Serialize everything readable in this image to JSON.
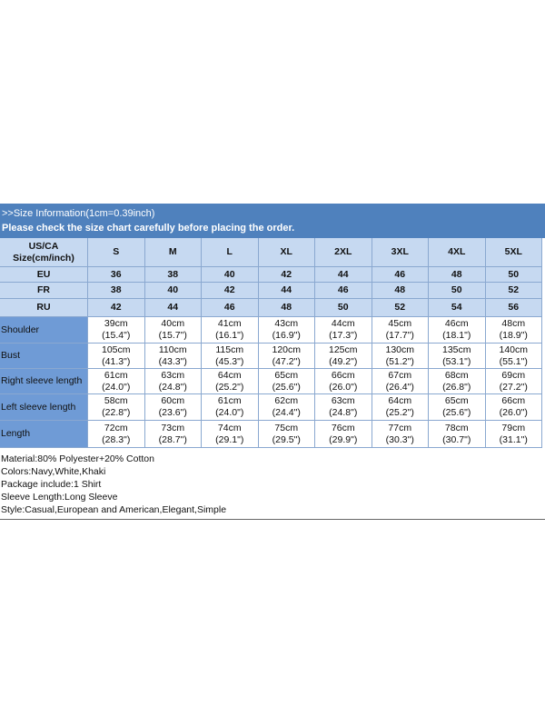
{
  "header": {
    "line1": ">>Size Information(1cm=0.39inch)",
    "line2": "Please check the size chart carefully before placing the order."
  },
  "table": {
    "size_head": [
      "US/CA",
      "Size(cm/inch)"
    ],
    "sizes": [
      "S",
      "M",
      "L",
      "XL",
      "2XL",
      "3XL",
      "4XL",
      "5XL"
    ],
    "conversions": [
      {
        "label": "EU",
        "values": [
          "36",
          "38",
          "40",
          "42",
          "44",
          "46",
          "48",
          "50"
        ]
      },
      {
        "label": "FR",
        "values": [
          "38",
          "40",
          "42",
          "44",
          "46",
          "48",
          "50",
          "52"
        ]
      },
      {
        "label": "RU",
        "values": [
          "42",
          "44",
          "46",
          "48",
          "50",
          "52",
          "54",
          "56"
        ]
      }
    ],
    "rows": [
      {
        "label": "Shoulder",
        "cm": [
          "39cm",
          "40cm",
          "41cm",
          "43cm",
          "44cm",
          "45cm",
          "46cm",
          "48cm"
        ],
        "inch": [
          "(15.4\")",
          "(15.7\")",
          "(16.1\")",
          "(16.9\")",
          "(17.3\")",
          "(17.7\")",
          "(18.1\")",
          "(18.9\")"
        ]
      },
      {
        "label": "Bust",
        "cm": [
          "105cm",
          "110cm",
          "115cm",
          "120cm",
          "125cm",
          "130cm",
          "135cm",
          "140cm"
        ],
        "inch": [
          "(41.3\")",
          "(43.3\")",
          "(45.3\")",
          "(47.2\")",
          "(49.2\")",
          "(51.2\")",
          "(53.1\")",
          "(55.1\")"
        ]
      },
      {
        "label": "Right sleeve length",
        "cm": [
          "61cm",
          "63cm",
          "64cm",
          "65cm",
          "66cm",
          "67cm",
          "68cm",
          "69cm"
        ],
        "inch": [
          "(24.0\")",
          "(24.8\")",
          "(25.2\")",
          "(25.6\")",
          "(26.0\")",
          "(26.4\")",
          "(26.8\")",
          "(27.2\")"
        ]
      },
      {
        "label": "Left sleeve length",
        "cm": [
          "58cm",
          "60cm",
          "61cm",
          "62cm",
          "63cm",
          "64cm",
          "65cm",
          "66cm"
        ],
        "inch": [
          "(22.8\")",
          "(23.6\")",
          "(24.0\")",
          "(24.4\")",
          "(24.8\")",
          "(25.2\")",
          "(25.6\")",
          "(26.0\")"
        ]
      },
      {
        "label": "Length",
        "cm": [
          "72cm",
          "73cm",
          "74cm",
          "75cm",
          "76cm",
          "77cm",
          "78cm",
          "79cm"
        ],
        "inch": [
          "(28.3\")",
          "(28.7\")",
          "(29.1\")",
          "(29.5\")",
          "(29.9\")",
          "(30.3\")",
          "(30.7\")",
          "(31.1\")"
        ]
      }
    ]
  },
  "notes": [
    "Material:80% Polyester+20% Cotton",
    "Colors:Navy,White,Khaki",
    "Package include:1 Shirt",
    "Sleeve Length:Long Sleeve",
    "Style:Casual,European and American,Elegant,Simple"
  ]
}
